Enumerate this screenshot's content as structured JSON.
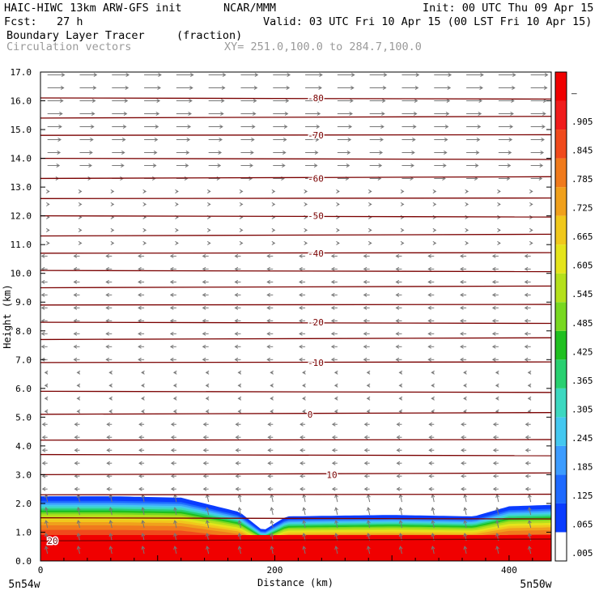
{
  "header": {
    "model": "HAIC-HIWC 13km ARW-GFS init",
    "org": "NCAR/MMM",
    "init": "Init: 00 UTC Thu 09 Apr 15",
    "fcst": "Fcst:   27 h",
    "valid": "Valid: 03 UTC Fri 10 Apr 15 (00 LST Fri 10 Apr 15)",
    "field": "Boundary Layer Tracer",
    "units": "(fraction)",
    "vectors": "Circulation vectors",
    "xy": "XY= 251.0,100.0 to 284.7,100.0"
  },
  "chart_data": {
    "type": "heatmap",
    "title": "Boundary Layer Tracer",
    "units": "(fraction)",
    "xlabel": "Distance (km)",
    "ylabel": "Height (km)",
    "xlim": [
      0,
      436
    ],
    "ylim": [
      0,
      17
    ],
    "x_ticks": [
      0,
      200,
      400
    ],
    "y_ticks": [
      "0.0",
      "1.0",
      "2.0",
      "3.0",
      "4.0",
      "5.0",
      "6.0",
      "7.0",
      "8.0",
      "9.0",
      "10.0",
      "11.0",
      "12.0",
      "13.0",
      "14.0",
      "15.0",
      "16.0",
      "17.0"
    ],
    "x_end_labels": {
      "left": "5n54w",
      "right": "5n50w"
    },
    "colorbar": {
      "labels": [
        ".005",
        ".065",
        ".125",
        ".185",
        ".245",
        ".305",
        ".365",
        ".425",
        ".485",
        ".545",
        ".605",
        ".665",
        ".725",
        ".785",
        ".845",
        ".905",
        "–"
      ],
      "colors": [
        "#ffffff",
        "#0a3cff",
        "#1e6aff",
        "#3c9cff",
        "#44c8f0",
        "#3cd8c0",
        "#28d070",
        "#20c020",
        "#78d820",
        "#b4e01c",
        "#e4e41c",
        "#f0c81c",
        "#f0a01c",
        "#f07a1c",
        "#f04a1c",
        "#f01c1c",
        "#f00000"
      ]
    },
    "temperature_contours": [
      {
        "label": "20",
        "height": 0.7
      },
      {
        "label": "10",
        "height": 3.0
      },
      {
        "label": "0",
        "height": 5.1
      },
      {
        "label": "-10",
        "height": 6.9
      },
      {
        "label": "-20",
        "height": 8.3
      },
      {
        "label": "-40",
        "height": 10.7
      },
      {
        "label": "-50",
        "height": 12.0
      },
      {
        "label": "-60",
        "height": 13.3
      },
      {
        "label": "-70",
        "height": 14.8
      },
      {
        "label": "-80",
        "height": 16.1
      }
    ],
    "contour_heights_km": [
      0.7,
      1.5,
      2.3,
      3.0,
      3.7,
      4.2,
      5.1,
      5.9,
      6.9,
      7.7,
      8.3,
      8.9,
      9.5,
      10.1,
      10.7,
      11.3,
      12.0,
      12.6,
      13.3,
      14.0,
      14.8,
      15.4,
      16.1
    ],
    "boundary_layer_top_km": [
      {
        "x": 0,
        "top": 2.25
      },
      {
        "x": 60,
        "top": 2.25
      },
      {
        "x": 120,
        "top": 2.2
      },
      {
        "x": 170,
        "top": 1.7
      },
      {
        "x": 190,
        "top": 1.05
      },
      {
        "x": 210,
        "top": 1.55
      },
      {
        "x": 300,
        "top": 1.6
      },
      {
        "x": 370,
        "top": 1.55
      },
      {
        "x": 400,
        "top": 1.9
      },
      {
        "x": 436,
        "top": 1.95
      }
    ],
    "grid": false
  }
}
